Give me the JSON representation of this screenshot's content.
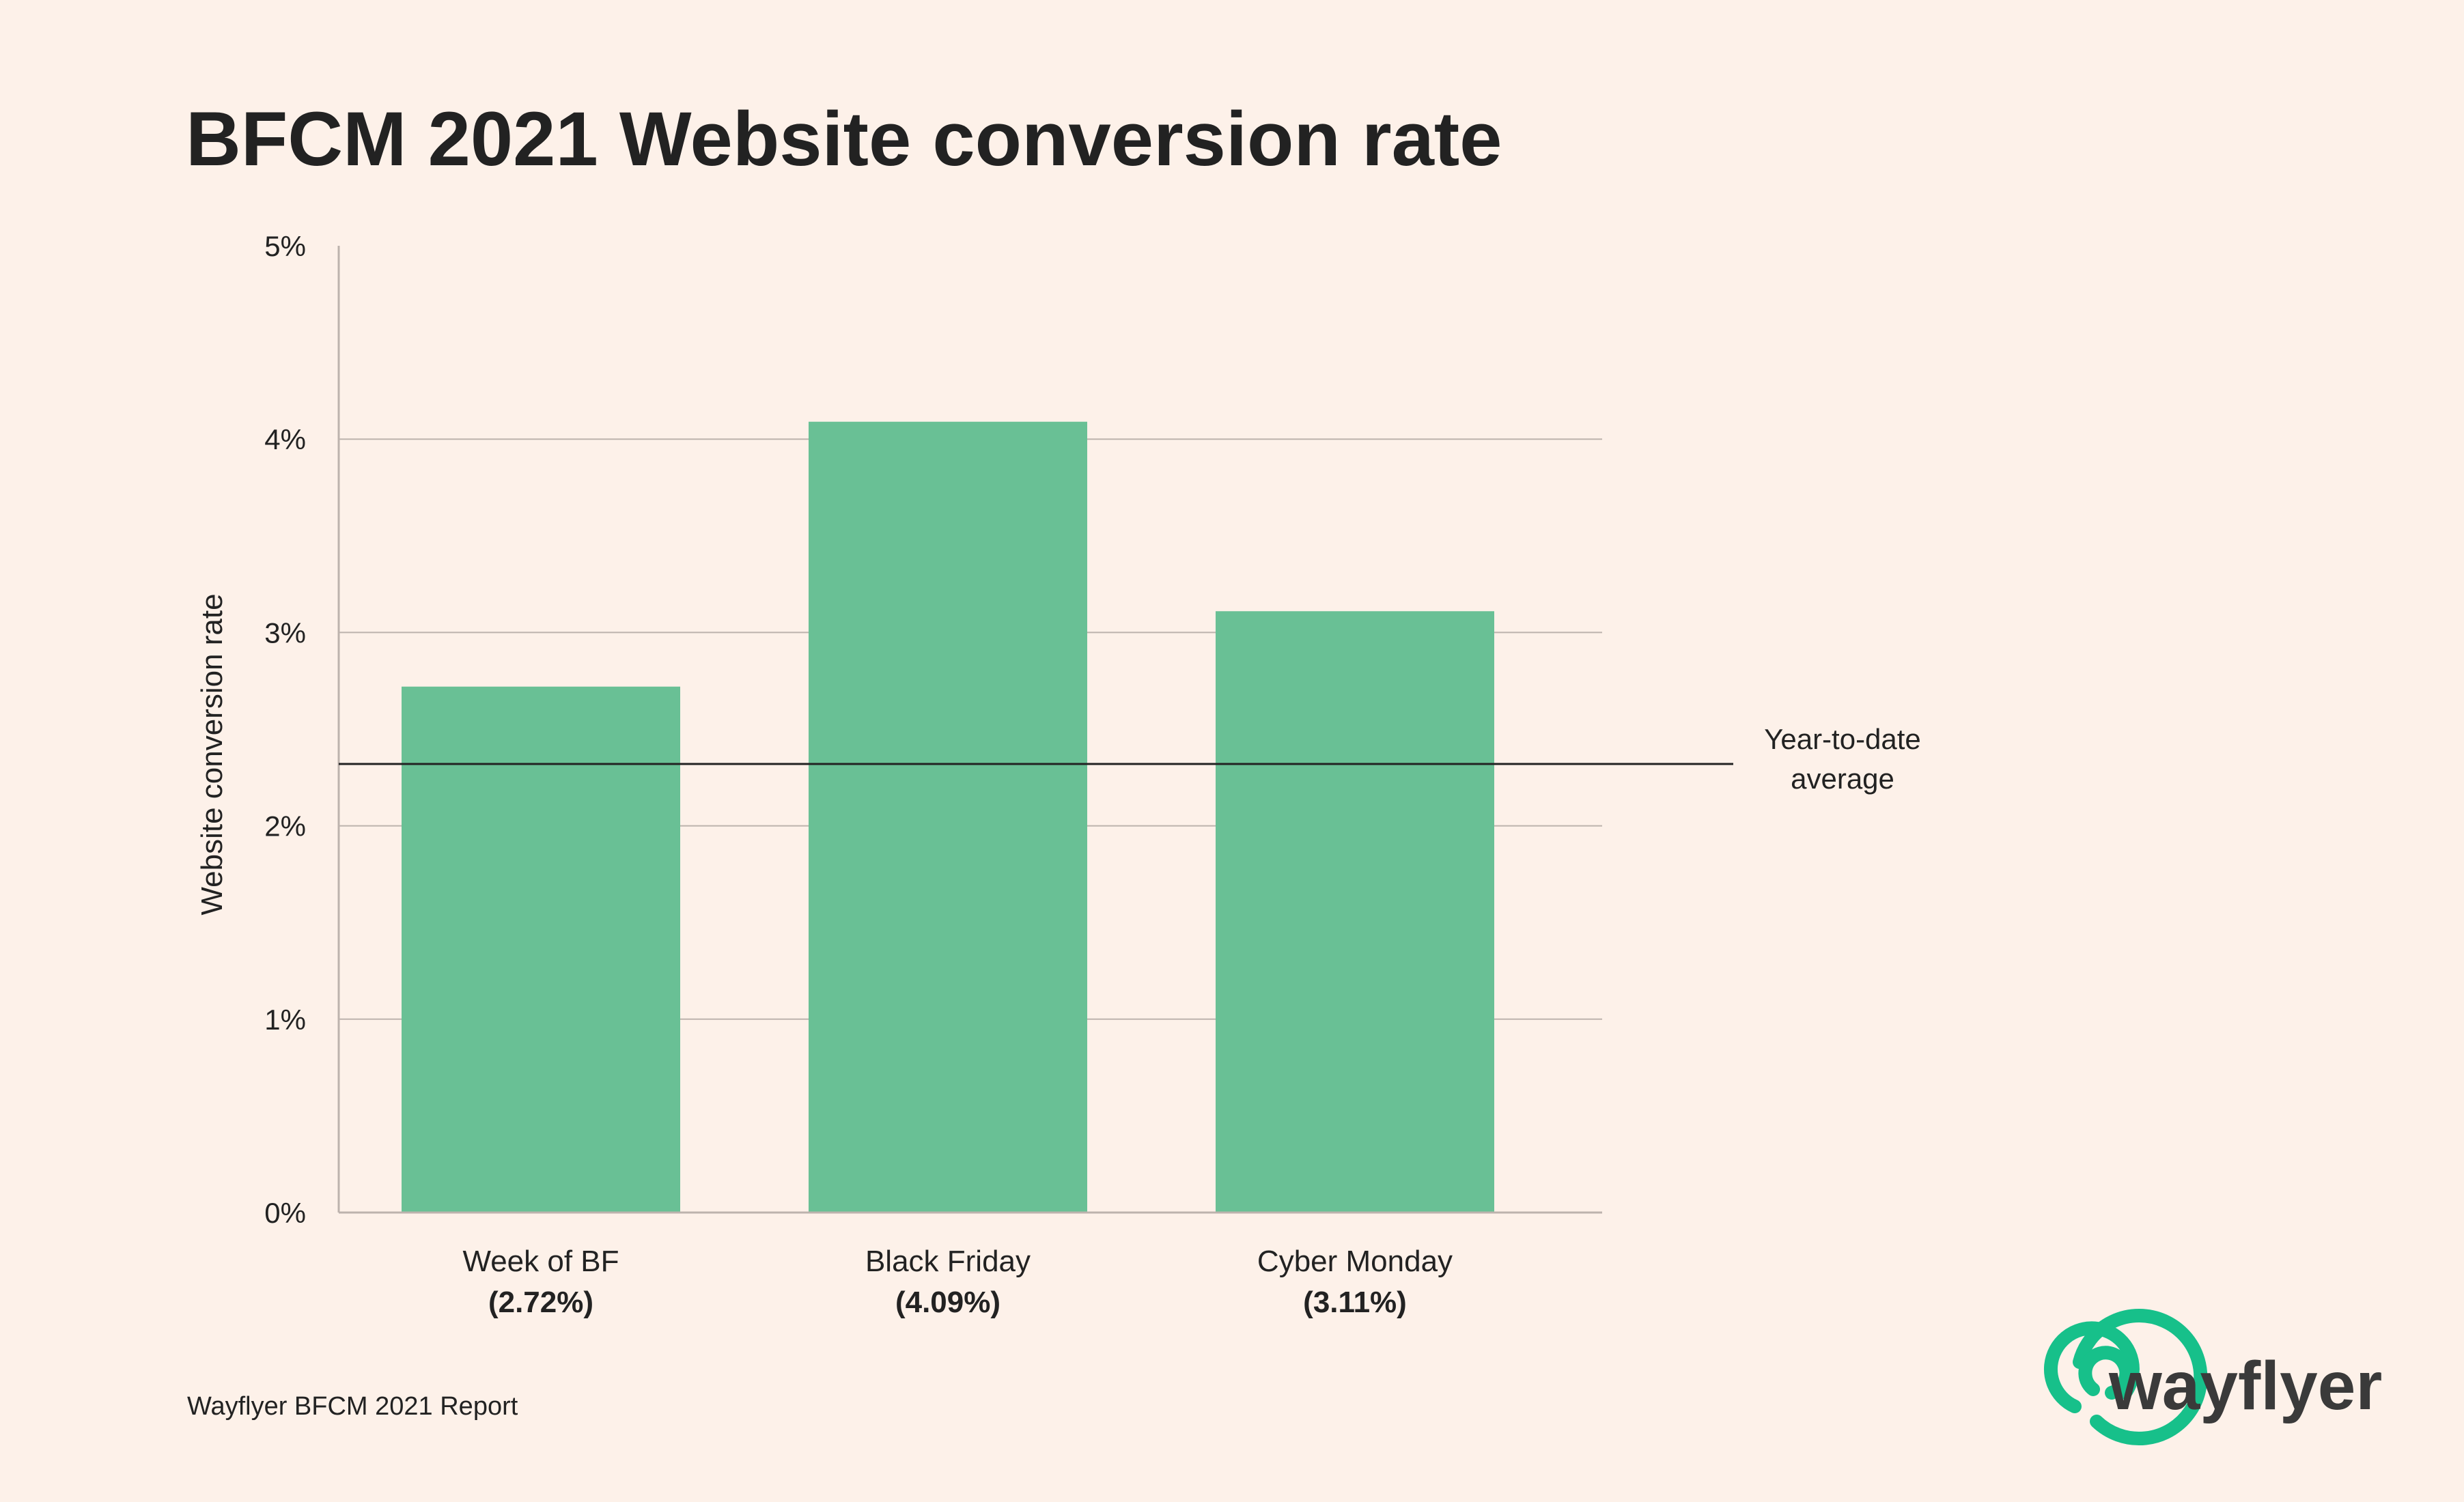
{
  "title": "BFCM 2021 Website conversion rate",
  "footer": "Wayflyer BFCM 2021 Report",
  "logo": {
    "text": "wayflyer",
    "icon": "wayflyer-swirl-icon",
    "color": "#17c08a",
    "text_color": "#3a3a3a"
  },
  "colors": {
    "background": "#fdf1e9",
    "bar": "#69c095",
    "grid": "#bdb3ad",
    "average_line": "#222222",
    "text": "#222222"
  },
  "chart_data": {
    "type": "bar",
    "ylabel": "Website conversion rate",
    "ylim": [
      0,
      5
    ],
    "yticks": [
      "0%",
      "1%",
      "2%",
      "3%",
      "4%",
      "5%"
    ],
    "grid": true,
    "categories": [
      "Week of BF",
      "Black Friday",
      "Cyber Monday"
    ],
    "value_labels": [
      "(2.72%)",
      "(4.09%)",
      "(3.11%)"
    ],
    "values": [
      2.72,
      4.09,
      3.11
    ],
    "reference_line": {
      "value": 2.32,
      "label_line1": "Year-to-date",
      "label_line2": "average"
    }
  }
}
